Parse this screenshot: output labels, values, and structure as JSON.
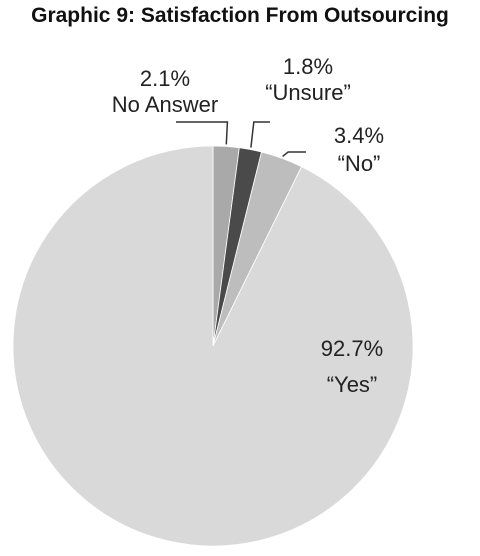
{
  "chart_data": {
    "type": "pie",
    "title": "Graphic 9: Satisfaction From Outsourcing",
    "slices": [
      {
        "name": "No Answer",
        "label": "No Answer",
        "value": 2.1,
        "value_label": "2.1%",
        "color": "#a9a9a9"
      },
      {
        "name": "Unsure",
        "label": "“Unsure”",
        "value": 1.8,
        "value_label": "1.8%",
        "color": "#4a4a4a"
      },
      {
        "name": "No",
        "label": "“No”",
        "value": 3.4,
        "value_label": "3.4%",
        "color": "#bdbdbd"
      },
      {
        "name": "Yes",
        "label": "“Yes”",
        "value": 92.7,
        "value_label": "92.7%",
        "color": "#d9d9d9"
      }
    ]
  }
}
